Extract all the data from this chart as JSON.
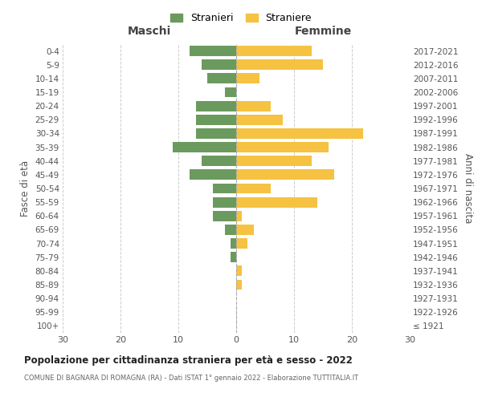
{
  "age_groups": [
    "100+",
    "95-99",
    "90-94",
    "85-89",
    "80-84",
    "75-79",
    "70-74",
    "65-69",
    "60-64",
    "55-59",
    "50-54",
    "45-49",
    "40-44",
    "35-39",
    "30-34",
    "25-29",
    "20-24",
    "15-19",
    "10-14",
    "5-9",
    "0-4"
  ],
  "birth_years": [
    "≤ 1921",
    "1922-1926",
    "1927-1931",
    "1932-1936",
    "1937-1941",
    "1942-1946",
    "1947-1951",
    "1952-1956",
    "1957-1961",
    "1962-1966",
    "1967-1971",
    "1972-1976",
    "1977-1981",
    "1982-1986",
    "1987-1991",
    "1992-1996",
    "1997-2001",
    "2002-2006",
    "2007-2011",
    "2012-2016",
    "2017-2021"
  ],
  "males": [
    0,
    0,
    0,
    0,
    0,
    1,
    1,
    2,
    4,
    4,
    4,
    8,
    6,
    11,
    7,
    7,
    7,
    2,
    5,
    6,
    8
  ],
  "females": [
    0,
    0,
    0,
    1,
    1,
    0,
    2,
    3,
    1,
    14,
    6,
    17,
    13,
    16,
    22,
    8,
    6,
    0,
    4,
    15,
    13
  ],
  "male_color": "#6b9a5e",
  "female_color": "#f5c242",
  "background_color": "#ffffff",
  "grid_color": "#cccccc",
  "title": "Popolazione per cittadinanza straniera per età e sesso - 2022",
  "subtitle": "COMUNE DI BAGNARA DI ROMAGNA (RA) - Dati ISTAT 1° gennaio 2022 - Elaborazione TUTTITALIA.IT",
  "xlabel_left": "Maschi",
  "xlabel_right": "Femmine",
  "ylabel_left": "Fasce di età",
  "ylabel_right": "Anni di nascita",
  "legend_male": "Stranieri",
  "legend_female": "Straniere",
  "xlim": 30
}
